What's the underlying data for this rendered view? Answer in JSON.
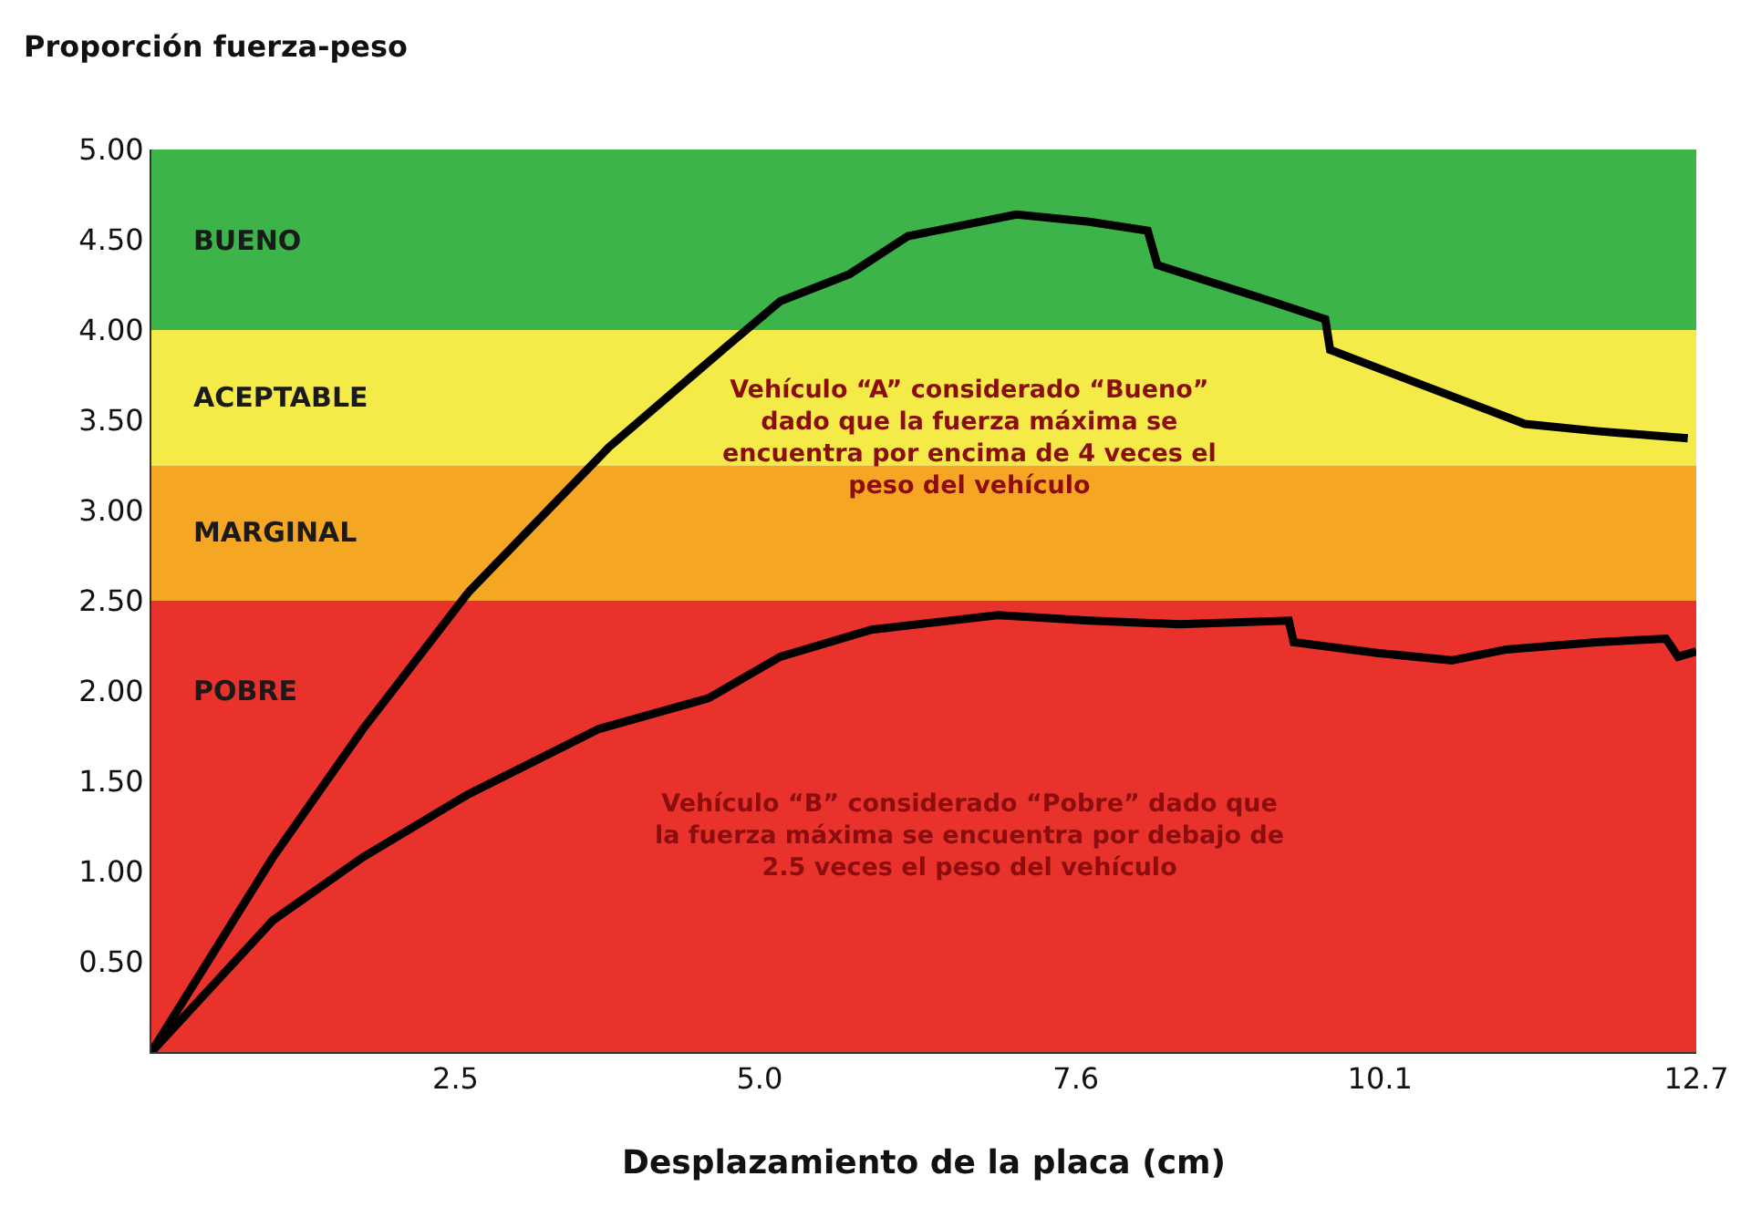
{
  "chart_data": {
    "type": "line",
    "ylabel": "Proporción fuerza-peso",
    "xlabel": "Desplazamiento de la placa (cm)",
    "xlim": [
      0,
      12.7
    ],
    "xticks": [
      2.5,
      {
        "value": 5.0,
        "label": "5.0"
      },
      7.6,
      10.1,
      12.7
    ],
    "ylim": [
      0,
      5
    ],
    "yticks": [
      {
        "value": 0.5,
        "label": "0.50"
      },
      {
        "value": 1,
        "label": "1.00"
      },
      {
        "value": 1.5,
        "label": "1.50"
      },
      {
        "value": 2,
        "label": "2.00"
      },
      {
        "value": 2.5,
        "label": "2.50"
      },
      {
        "value": 3,
        "label": "3.00"
      },
      {
        "value": 3.5,
        "label": "3.50"
      },
      {
        "value": 4,
        "label": "4.00"
      },
      {
        "value": 4.5,
        "label": "4.50"
      },
      {
        "value": 5,
        "label": "5.00"
      }
    ],
    "grid": false,
    "line_style": "solid",
    "marker": "none",
    "bands": [
      {
        "axis": "y",
        "from": 0,
        "to": 2.5,
        "label": "POBRE",
        "color": "#e8322b"
      },
      {
        "axis": "y",
        "from": 2.5,
        "to": 3.25,
        "label": "MARGINAL",
        "color": "#f5a623"
      },
      {
        "axis": "y",
        "from": 3.25,
        "to": 4.0,
        "label": "ACEPTABLE",
        "color": "#f4ea48"
      },
      {
        "axis": "y",
        "from": 4.0,
        "to": 5.0,
        "label": "BUENO",
        "color": "#3cb44a"
      }
    ],
    "annotations": [
      "Vehículo “A” considerado “Bueno”\ndado que la fuerza máxima se\nencuentra por encima de 4 veces el\npeso del vehículo",
      "Vehículo “B” considerado “Pobre” dado que\nla fuerza máxima se encuentra por debajo de\n2.5 veces el peso del vehículo"
    ],
    "series": [
      {
        "color": "#000000",
        "x": [
          0,
          1.0,
          1.74,
          2.61,
          3.76,
          4.73,
          5.17,
          5.74,
          6.22,
          7.11,
          7.71,
          8.19,
          8.27,
          9.2,
          9.65,
          9.69,
          10.39,
          11.29,
          11.88,
          12.63
        ],
        "values": [
          0,
          1.08,
          1.79,
          2.55,
          3.35,
          3.91,
          4.16,
          4.31,
          4.52,
          4.64,
          4.6,
          4.55,
          4.36,
          4.16,
          4.06,
          3.89,
          3.71,
          3.48,
          3.44,
          3.4
        ]
      },
      {
        "color": "#000000",
        "x": [
          0,
          1.0,
          1.74,
          2.61,
          3.68,
          4.58,
          5.17,
          5.92,
          6.96,
          7.71,
          8.45,
          9.35,
          9.39,
          10.09,
          10.69,
          11.14,
          11.88,
          12.45,
          12.55,
          12.7
        ],
        "values": [
          0,
          0.73,
          1.08,
          1.43,
          1.79,
          1.96,
          2.19,
          2.34,
          2.42,
          2.39,
          2.37,
          2.39,
          2.27,
          2.21,
          2.17,
          2.23,
          2.27,
          2.29,
          2.19,
          2.22
        ]
      }
    ]
  }
}
